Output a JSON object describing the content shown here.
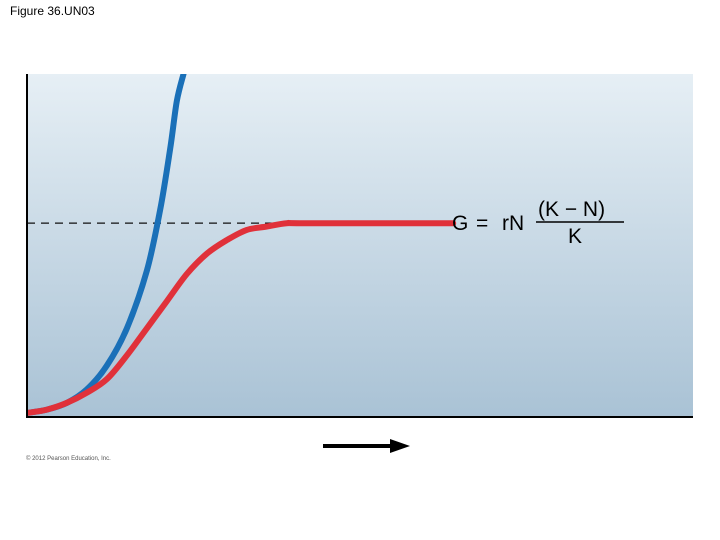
{
  "figure_label": "Figure 36.UN03",
  "copyright": "© 2012 Pearson Education, Inc.",
  "equation": {
    "lhs": "G",
    "equals": "=",
    "factor": "rN",
    "numerator": "(K − N)",
    "denominator": "K"
  },
  "colors": {
    "panel_top": "#e6eff5",
    "panel_bottom": "#a9c2d5",
    "exponential": "#1a70b8",
    "logistic": "#e0313a",
    "axis": "#000000"
  },
  "chart_data": {
    "type": "line",
    "title": "",
    "xlabel": "",
    "ylabel": "",
    "xlim": [
      0,
      1
    ],
    "ylim": [
      0,
      1
    ],
    "grid": false,
    "axis_direction_arrow": "right",
    "carrying_capacity_line": {
      "style": "dashed",
      "y": 0.56
    },
    "series": [
      {
        "key": "exponential",
        "x": [
          0.0,
          0.03,
          0.06,
          0.09,
          0.12,
          0.15,
          0.18,
          0.2,
          0.215,
          0.225,
          0.235
        ],
        "y": [
          0.0,
          0.01,
          0.03,
          0.07,
          0.14,
          0.25,
          0.42,
          0.6,
          0.78,
          0.92,
          1.0
        ]
      },
      {
        "key": "logistic",
        "x": [
          0.0,
          0.03,
          0.06,
          0.09,
          0.12,
          0.15,
          0.18,
          0.21,
          0.24,
          0.27,
          0.3,
          0.33,
          0.36,
          0.39,
          0.42,
          0.64
        ],
        "y": [
          0.0,
          0.01,
          0.03,
          0.06,
          0.1,
          0.17,
          0.25,
          0.33,
          0.41,
          0.47,
          0.51,
          0.54,
          0.55,
          0.56,
          0.56,
          0.56
        ]
      }
    ]
  }
}
